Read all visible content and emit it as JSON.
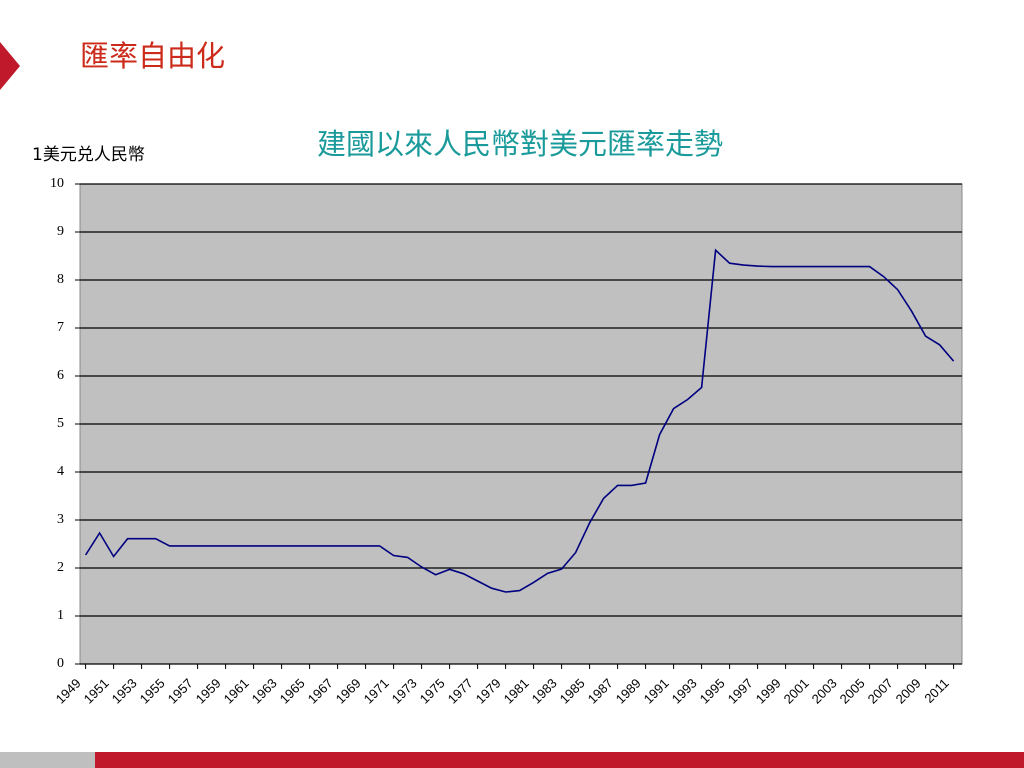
{
  "slide_title": "匯率自由化",
  "chart_data": {
    "type": "line",
    "title": "建國以來人民幣對美元匯率走勢",
    "y_label": "1美元兑人民幣",
    "x": [
      1949,
      1950,
      1951,
      1952,
      1953,
      1954,
      1955,
      1956,
      1957,
      1958,
      1959,
      1960,
      1961,
      1962,
      1963,
      1964,
      1965,
      1966,
      1967,
      1968,
      1969,
      1970,
      1971,
      1972,
      1973,
      1974,
      1975,
      1976,
      1977,
      1978,
      1979,
      1980,
      1981,
      1982,
      1983,
      1984,
      1985,
      1986,
      1987,
      1988,
      1989,
      1990,
      1991,
      1992,
      1993,
      1994,
      1995,
      1996,
      1997,
      1998,
      1999,
      2000,
      2001,
      2002,
      2003,
      2004,
      2005,
      2006,
      2007,
      2008,
      2009,
      2010,
      2011
    ],
    "values": [
      2.27,
      2.73,
      2.24,
      2.61,
      2.61,
      2.61,
      2.46,
      2.46,
      2.46,
      2.46,
      2.46,
      2.46,
      2.46,
      2.46,
      2.46,
      2.46,
      2.46,
      2.46,
      2.46,
      2.46,
      2.46,
      2.46,
      2.26,
      2.22,
      2.02,
      1.86,
      1.97,
      1.88,
      1.73,
      1.58,
      1.5,
      1.53,
      1.7,
      1.89,
      1.98,
      2.32,
      2.94,
      3.45,
      3.72,
      3.72,
      3.77,
      4.78,
      5.32,
      5.51,
      5.76,
      8.62,
      8.35,
      8.31,
      8.29,
      8.28,
      8.28,
      8.28,
      8.28,
      8.28,
      8.28,
      8.28,
      8.28,
      8.07,
      7.8,
      7.35,
      6.83,
      6.65,
      6.31
    ],
    "color": "#000080",
    "xlim": [
      1948.6,
      2011.6
    ],
    "xticks": [
      1949,
      1951,
      1953,
      1955,
      1957,
      1959,
      1961,
      1963,
      1965,
      1967,
      1969,
      1971,
      1973,
      1975,
      1977,
      1979,
      1981,
      1983,
      1985,
      1987,
      1989,
      1991,
      1993,
      1995,
      1997,
      1999,
      2001,
      2003,
      2005,
      2007,
      2009,
      2011
    ],
    "ylim": [
      0,
      10
    ],
    "yticks": [
      0,
      1,
      2,
      3,
      4,
      5,
      6,
      7,
      8,
      9,
      10
    ],
    "grid": true
  }
}
